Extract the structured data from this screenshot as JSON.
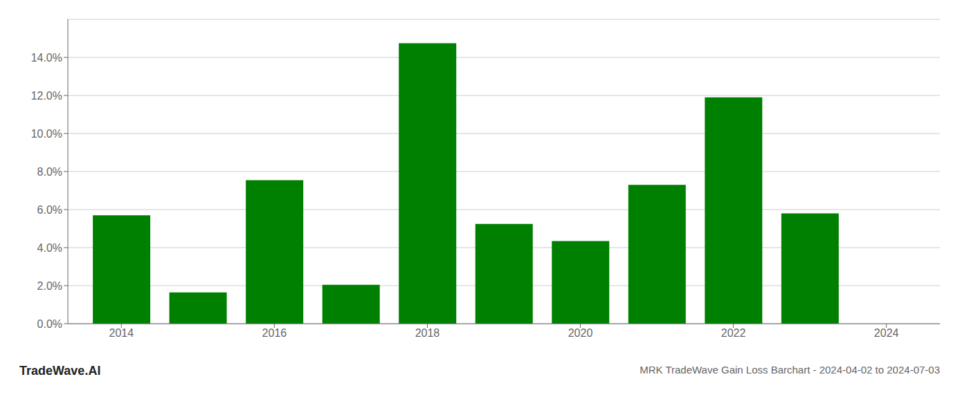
{
  "chart_data": {
    "type": "bar",
    "title": "MRK TradeWave Gain Loss Barchart - 2024-04-02 to 2024-07-03",
    "annotations": [
      {
        "text": "TradeWave.AI"
      }
    ],
    "x": [
      2014,
      2015,
      2016,
      2017,
      2018,
      2019,
      2020,
      2021,
      2022,
      2023
    ],
    "values": [
      0.057,
      0.0165,
      0.0755,
      0.0205,
      0.1475,
      0.0525,
      0.0435,
      0.073,
      0.119,
      0.058
    ],
    "color": "#008000",
    "xlim": [
      2013.3,
      2024.7
    ],
    "xticks": [
      2014,
      2016,
      2018,
      2020,
      2022,
      2024
    ],
    "ylim": [
      0,
      0.16
    ],
    "yticks": [
      {
        "value": 0.0,
        "label": "0.0%"
      },
      {
        "value": 0.02,
        "label": "2.0%"
      },
      {
        "value": 0.04,
        "label": "4.0%"
      },
      {
        "value": 0.06,
        "label": "6.0%"
      },
      {
        "value": 0.08,
        "label": "8.0%"
      },
      {
        "value": 0.1,
        "label": "10.0%"
      },
      {
        "value": 0.12,
        "label": "12.0%"
      },
      {
        "value": 0.14,
        "label": "14.0%"
      }
    ],
    "grid": "y"
  }
}
